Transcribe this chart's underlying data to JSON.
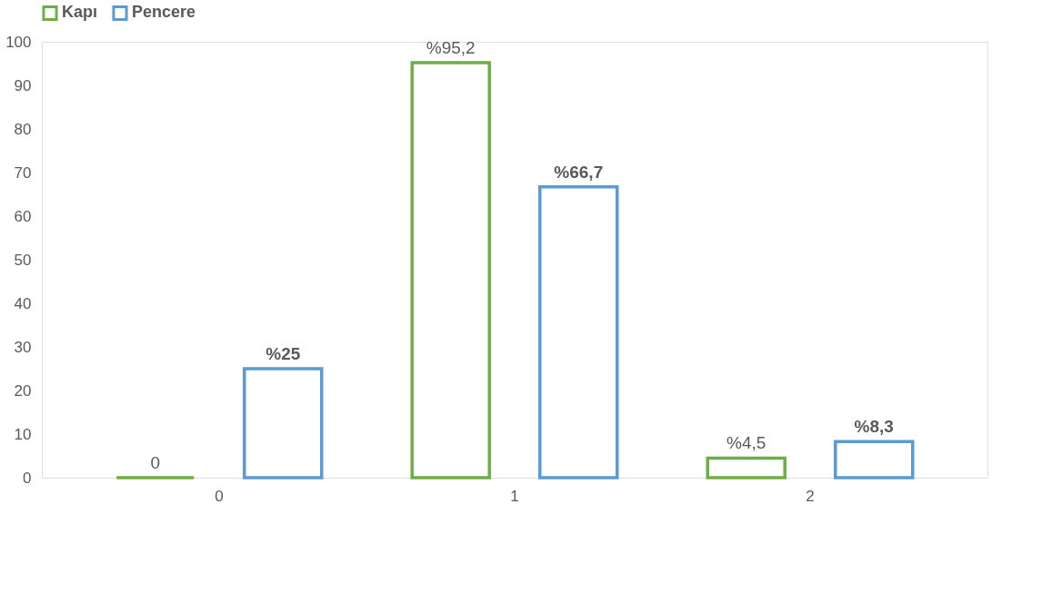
{
  "chart_data": {
    "type": "bar",
    "categories": [
      "0",
      "1",
      "2"
    ],
    "series": [
      {
        "name": "Kapı",
        "color": "#70ad47",
        "values": [
          0,
          95.2,
          4.5
        ],
        "value_labels": [
          "0",
          "%95,2",
          "%4,5"
        ]
      },
      {
        "name": "Pencere",
        "color": "#5b9bd5",
        "values": [
          25,
          66.7,
          8.3
        ],
        "value_labels": [
          "%25",
          "%66,7",
          "%8,3"
        ]
      }
    ],
    "ylim": [
      0,
      100
    ],
    "yticks": [
      0,
      10,
      20,
      30,
      40,
      50,
      60,
      70,
      80,
      90,
      100
    ],
    "grid": false,
    "legend": "top"
  }
}
